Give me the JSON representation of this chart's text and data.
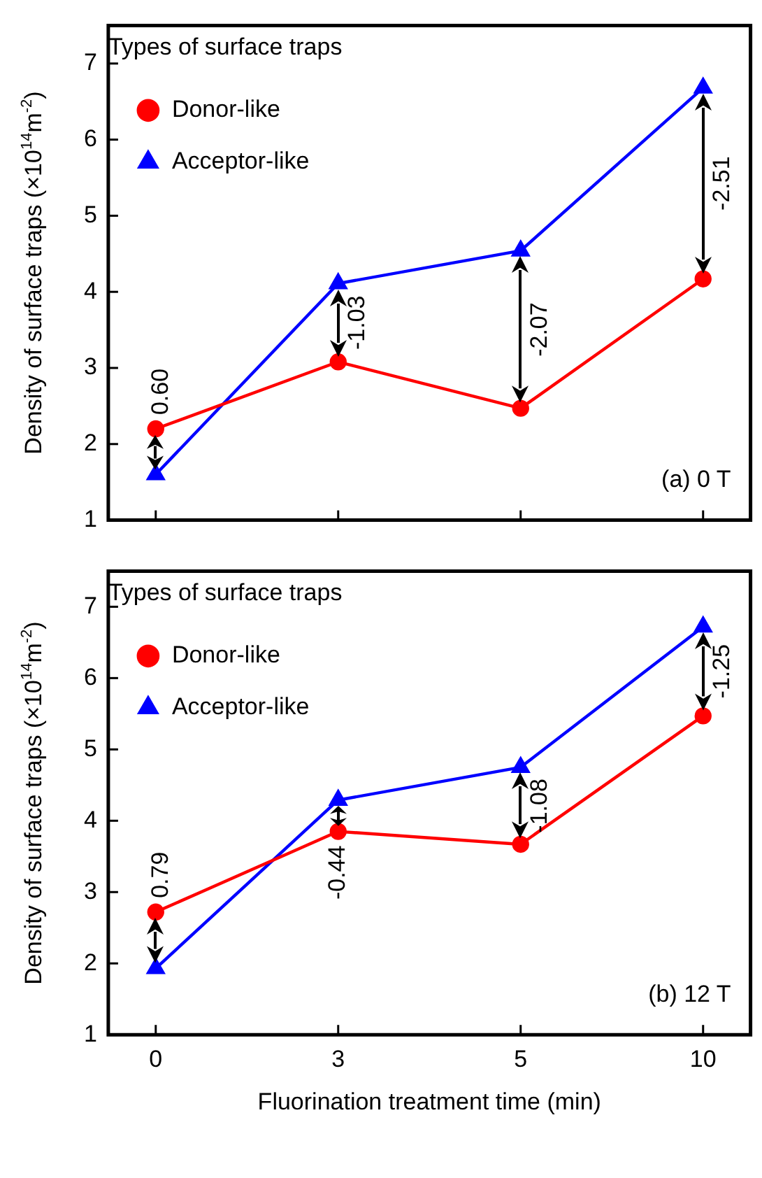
{
  "chart_data": [
    {
      "type": "line",
      "ylabel": "Density of surface traps (×10$^{14}$m$^{-2}$)",
      "legend_title": "Types of surface traps",
      "legend": "top left",
      "categories": [
        "0",
        "3",
        "5",
        "10"
      ],
      "tick_labels": "y",
      "ylim": [
        1,
        7.5
      ],
      "yticks": [
        1,
        2,
        3,
        4,
        5,
        6,
        7
      ],
      "grid": false,
      "series": [
        {
          "name": "Donor-like",
          "color": "#ff0000",
          "marker": "circle",
          "values": [
            2.2,
            3.08,
            2.47,
            4.17
          ]
        },
        {
          "name": "Acceptor-like",
          "color": "#0000ff",
          "marker": "triangle",
          "values": [
            1.6,
            4.11,
            4.54,
            6.68
          ]
        }
      ],
      "annotations": [
        "0.60",
        "-1.03",
        "-2.07",
        "-2.51",
        "(a) 0 T"
      ]
    },
    {
      "type": "line",
      "xlabel": "Fluorination treatment time (min)",
      "ylabel": "Density of surface traps (×10$^{14}$m$^{-2}$)",
      "legend_title": "Types of surface traps",
      "legend": "top left",
      "categories": [
        "0",
        "3",
        "5",
        "10"
      ],
      "ylim": [
        1,
        7.5
      ],
      "yticks": [
        1,
        2,
        3,
        4,
        5,
        6,
        7
      ],
      "grid": false,
      "series": [
        {
          "name": "Donor-like",
          "color": "#ff0000",
          "marker": "circle",
          "values": [
            2.72,
            3.85,
            3.67,
            5.47
          ]
        },
        {
          "name": "Acceptor-like",
          "color": "#0000ff",
          "marker": "triangle",
          "values": [
            1.93,
            4.29,
            4.75,
            6.72
          ]
        }
      ],
      "annotations": [
        "0.79",
        "-0.44",
        "-1.08",
        "-1.25",
        "(b) 12 T"
      ]
    }
  ]
}
